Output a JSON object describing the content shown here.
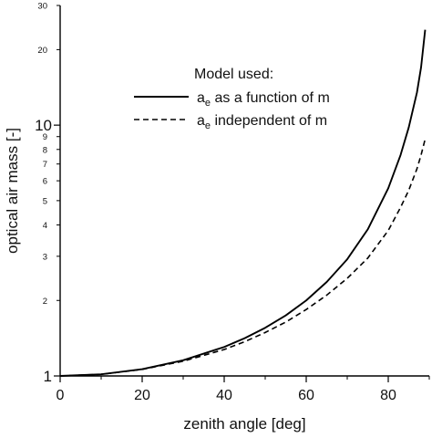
{
  "chart_data": {
    "type": "line",
    "xlabel": "zenith angle [deg]",
    "ylabel": "optical air mass [-]",
    "xlim": [
      0,
      90
    ],
    "ylim": [
      1,
      30
    ],
    "yscale": "log",
    "grid": false,
    "x_ticks": [
      "0",
      "20",
      "40",
      "60",
      "80"
    ],
    "x_tick_values": [
      0,
      20,
      40,
      60,
      80
    ],
    "y_major_ticks": [
      "1",
      "10"
    ],
    "y_major_tick_values": [
      1,
      10
    ],
    "y_minor_ticks": [
      "2",
      "3",
      "4",
      "5",
      "6",
      "7",
      "8",
      "9",
      "20",
      "30"
    ],
    "y_minor_tick_values": [
      2,
      3,
      4,
      5,
      6,
      7,
      8,
      9,
      20,
      30
    ],
    "legend_title": "Model used:",
    "legend_position": "upper-center",
    "series": [
      {
        "name": "a_e as a function of m",
        "legend_main": "a",
        "legend_sub": "e",
        "legend_rest": " as a function of m",
        "style": "solid",
        "x": [
          0,
          10,
          20,
          30,
          40,
          45,
          50,
          55,
          60,
          65,
          70,
          75,
          80,
          83,
          85,
          87,
          88,
          89
        ],
        "y": [
          1.0,
          1.015,
          1.064,
          1.155,
          1.305,
          1.414,
          1.556,
          1.743,
          2.0,
          2.37,
          2.92,
          3.84,
          5.6,
          7.6,
          9.8,
          13.5,
          17.0,
          24.0
        ]
      },
      {
        "name": "a_e independent of m",
        "legend_main": "a",
        "legend_sub": "e",
        "legend_rest": " independent of m",
        "style": "dashed",
        "x": [
          0,
          10,
          20,
          30,
          40,
          45,
          50,
          55,
          60,
          65,
          70,
          75,
          80,
          83,
          85,
          87,
          88,
          89
        ],
        "y": [
          1.0,
          1.015,
          1.062,
          1.145,
          1.275,
          1.37,
          1.49,
          1.64,
          1.84,
          2.1,
          2.45,
          2.95,
          3.8,
          4.7,
          5.5,
          6.7,
          7.6,
          8.8
        ]
      }
    ]
  }
}
